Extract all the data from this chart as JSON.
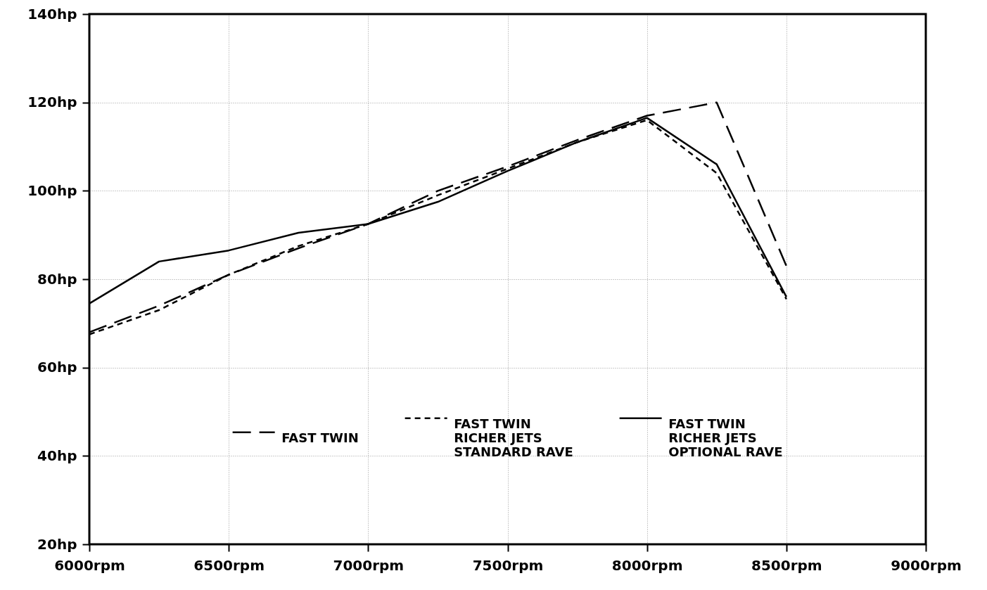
{
  "chart_data": {
    "type": "line",
    "x": [
      6000,
      6250,
      6500,
      6750,
      7000,
      7250,
      7500,
      7750,
      8000,
      8250,
      8500
    ],
    "series": [
      {
        "name": "FAST TWIN",
        "color": "#000000",
        "line_style": "dashed",
        "values": [
          68,
          74,
          81,
          87,
          92.5,
          100,
          105.5,
          111.5,
          117,
          120,
          83
        ]
      },
      {
        "name": "FAST TWIN\nRICHER JETS\nSTANDARD RAVE",
        "color": "#000000",
        "line_style": "dotted",
        "values": [
          67.5,
          73,
          81,
          87.5,
          92.5,
          99,
          105,
          111,
          116,
          104,
          75.5
        ]
      },
      {
        "name": "FAST TWIN\nRICHER JETS\nOPTIONAL RAVE",
        "color": "#000000",
        "line_style": "solid",
        "values": [
          74.5,
          84,
          86.5,
          90.5,
          92.5,
          97.5,
          104.5,
          111,
          116.5,
          106,
          76
        ]
      }
    ],
    "xlim": [
      6000,
      9000
    ],
    "ylim": [
      20,
      140
    ],
    "xticks": [
      {
        "value": 6000,
        "label": "6000rpm"
      },
      {
        "value": 6500,
        "label": "6500rpm"
      },
      {
        "value": 7000,
        "label": "7000rpm"
      },
      {
        "value": 7500,
        "label": "7500rpm"
      },
      {
        "value": 8000,
        "label": "8000rpm"
      },
      {
        "value": 8500,
        "label": "8500rpm"
      },
      {
        "value": 9000,
        "label": "9000rpm"
      }
    ],
    "yticks": [
      {
        "value": 20,
        "label": "20hp"
      },
      {
        "value": 40,
        "label": "40hp"
      },
      {
        "value": 60,
        "label": "60hp"
      },
      {
        "value": 80,
        "label": "80hp"
      },
      {
        "value": 100,
        "label": "100hp"
      },
      {
        "value": 120,
        "label": "120hp"
      },
      {
        "value": 140,
        "label": "140hp"
      }
    ],
    "grid": true,
    "legend": "bottom",
    "marker": "none"
  }
}
